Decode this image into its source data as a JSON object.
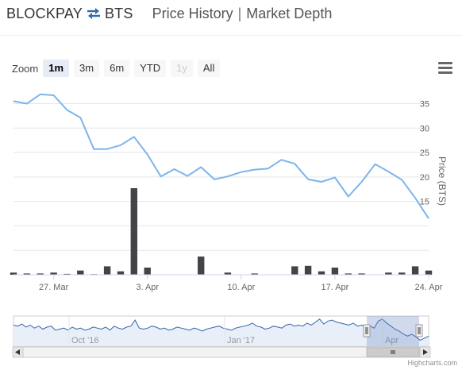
{
  "header": {
    "base": "BLOCKPAY",
    "swap_icon": "swap-arrows-icon",
    "quote": "BTS",
    "price_history": "Price History",
    "separator": "|",
    "market_depth": "Market Depth"
  },
  "zoom": {
    "label": "Zoom",
    "buttons": [
      {
        "label": "1m",
        "state": "active"
      },
      {
        "label": "3m",
        "state": "normal"
      },
      {
        "label": "6m",
        "state": "normal"
      },
      {
        "label": "YTD",
        "state": "normal"
      },
      {
        "label": "1y",
        "state": "disabled"
      },
      {
        "label": "All",
        "state": "normal"
      }
    ]
  },
  "menu_icon": "hamburger-menu-icon",
  "colors": {
    "price_line": "#7cb5ec",
    "volume_bar": "#434348",
    "navigator_fill": "#e8eff9",
    "navigator_mask": "rgba(102,133,194,0.3)"
  },
  "chart_data": [
    {
      "type": "line",
      "name": "price-and-volume",
      "ylabel": "Price (BTS)",
      "ylim": [
        0,
        38
      ],
      "y_ticks": [
        "0",
        "5",
        "10",
        "15",
        "20",
        "25",
        "30",
        "35"
      ],
      "y_ticks_visible": [
        "15",
        "20",
        "25",
        "30",
        "35"
      ],
      "x_tick_labels": [
        "27. Mar",
        "3. Apr",
        "10. Apr",
        "17. Apr",
        "24. Apr"
      ],
      "x_tick_dates": [
        "2017-03-27",
        "2017-04-03",
        "2017-04-10",
        "2017-04-17",
        "2017-04-24"
      ],
      "xlim": [
        "2017-03-24",
        "2017-04-24"
      ],
      "grid": true,
      "price": {
        "x": [
          "2017-03-24",
          "2017-03-25",
          "2017-03-26",
          "2017-03-27",
          "2017-03-28",
          "2017-03-29",
          "2017-03-30",
          "2017-03-31",
          "2017-04-01",
          "2017-04-02",
          "2017-04-03",
          "2017-04-04",
          "2017-04-05",
          "2017-04-06",
          "2017-04-07",
          "2017-04-08",
          "2017-04-09",
          "2017-04-10",
          "2017-04-11",
          "2017-04-12",
          "2017-04-13",
          "2017-04-14",
          "2017-04-15",
          "2017-04-16",
          "2017-04-17",
          "2017-04-18",
          "2017-04-19",
          "2017-04-20",
          "2017-04-21",
          "2017-04-22",
          "2017-04-23",
          "2017-04-24"
        ],
        "values": [
          35.5,
          35.0,
          36.9,
          36.7,
          33.7,
          32.1,
          25.7,
          25.7,
          26.5,
          28.2,
          24.6,
          20.1,
          21.6,
          20.2,
          22.0,
          19.5,
          20.1,
          21.0,
          21.5,
          21.7,
          23.5,
          22.7,
          19.5,
          19.0,
          19.9,
          16.0,
          19.0,
          22.6,
          21.1,
          19.4,
          15.7,
          11.5
        ]
      },
      "volume": {
        "x": [
          "2017-03-24",
          "2017-03-25",
          "2017-03-26",
          "2017-03-27",
          "2017-03-28",
          "2017-03-29",
          "2017-03-30",
          "2017-03-31",
          "2017-04-01",
          "2017-04-02",
          "2017-04-03",
          "2017-04-04",
          "2017-04-05",
          "2017-04-06",
          "2017-04-07",
          "2017-04-08",
          "2017-04-09",
          "2017-04-10",
          "2017-04-11",
          "2017-04-12",
          "2017-04-13",
          "2017-04-14",
          "2017-04-15",
          "2017-04-16",
          "2017-04-17",
          "2017-04-18",
          "2017-04-19",
          "2017-04-20",
          "2017-04-21",
          "2017-04-22",
          "2017-04-23",
          "2017-04-24"
        ],
        "values": [
          0.5,
          0.3,
          0.3,
          0.5,
          0.2,
          1.0,
          0.15,
          2.0,
          0.8,
          20.5,
          1.7,
          0.1,
          0.1,
          0.1,
          4.3,
          0.1,
          0.5,
          0.1,
          0.3,
          0.1,
          0.1,
          2.0,
          2.1,
          0.8,
          1.7,
          0.3,
          0.3,
          0.1,
          0.5,
          0.5,
          2.0,
          1.0
        ]
      },
      "volume_ylim": [
        0,
        44
      ]
    },
    {
      "type": "area",
      "name": "navigator",
      "x_tick_labels": [
        "Oct '16",
        "Jan '17",
        "Apr"
      ],
      "values": [
        31,
        30,
        32,
        29,
        31,
        28,
        30,
        27,
        29,
        30,
        26,
        27,
        28,
        26,
        29,
        27,
        28,
        26,
        27,
        29,
        28,
        27,
        29,
        26,
        30,
        28,
        27,
        29,
        30,
        36,
        28,
        27,
        28,
        30,
        29,
        27,
        28,
        26,
        27,
        29,
        28,
        27,
        26,
        28,
        27,
        25,
        27,
        28,
        29,
        30,
        28,
        27,
        26,
        28,
        29,
        30,
        31,
        33,
        30,
        29,
        27,
        28,
        30,
        29,
        28,
        31,
        32,
        30,
        31,
        30,
        33,
        31,
        34,
        37,
        32,
        35,
        36,
        34,
        33,
        32,
        31,
        33,
        30,
        31,
        29,
        30,
        28,
        35,
        37,
        33,
        30,
        27,
        25,
        22,
        20,
        22,
        19,
        16,
        18,
        20
      ],
      "selected_range": "1m"
    }
  ],
  "credit": "Highcharts.com"
}
